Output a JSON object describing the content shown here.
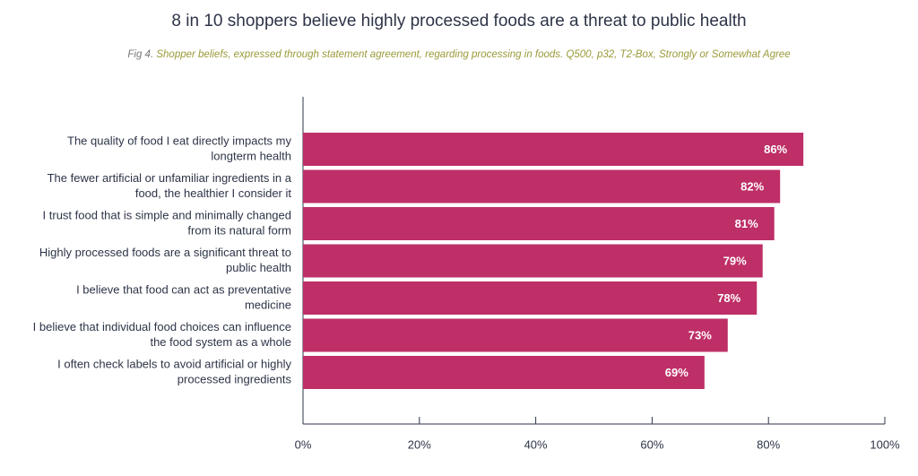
{
  "chart_data": {
    "type": "barh",
    "title": "8 in 10 shoppers believe highly processed foods are a threat to public health",
    "figure_label": "Fig 4.",
    "subtitle": "Shopper beliefs, expressed through statement agreement, regarding processing in foods. Q500, p32, T2-Box, Strongly or Somewhat Agree",
    "categories": [
      [
        "The quality of food I eat directly impacts my",
        "longterm health"
      ],
      [
        "The fewer artificial or unfamiliar ingredients in a",
        "food, the healthier I consider it"
      ],
      [
        "I trust food that is simple and minimally changed",
        "from its natural form"
      ],
      [
        "Highly processed foods are a significant threat to",
        "public health"
      ],
      [
        "I believe that food can act as preventative",
        "medicine"
      ],
      [
        "I believe that individual food choices can influence",
        "the food system as a whole"
      ],
      [
        "I often check labels to avoid artificial or highly",
        "processed ingredients"
      ]
    ],
    "values": [
      86,
      82,
      81,
      79,
      78,
      73,
      69
    ],
    "value_labels": [
      "86%",
      "82%",
      "81%",
      "79%",
      "78%",
      "73%",
      "69%"
    ],
    "color": "#be2f67",
    "xlim": [
      0,
      100
    ],
    "xticks": [
      {
        "value": 0,
        "label": "0%"
      },
      {
        "value": 20,
        "label": "20%"
      },
      {
        "value": 40,
        "label": "40%"
      },
      {
        "value": 60,
        "label": "60%"
      },
      {
        "value": 80,
        "label": "80%"
      },
      {
        "value": 100,
        "label": "100%"
      }
    ]
  }
}
